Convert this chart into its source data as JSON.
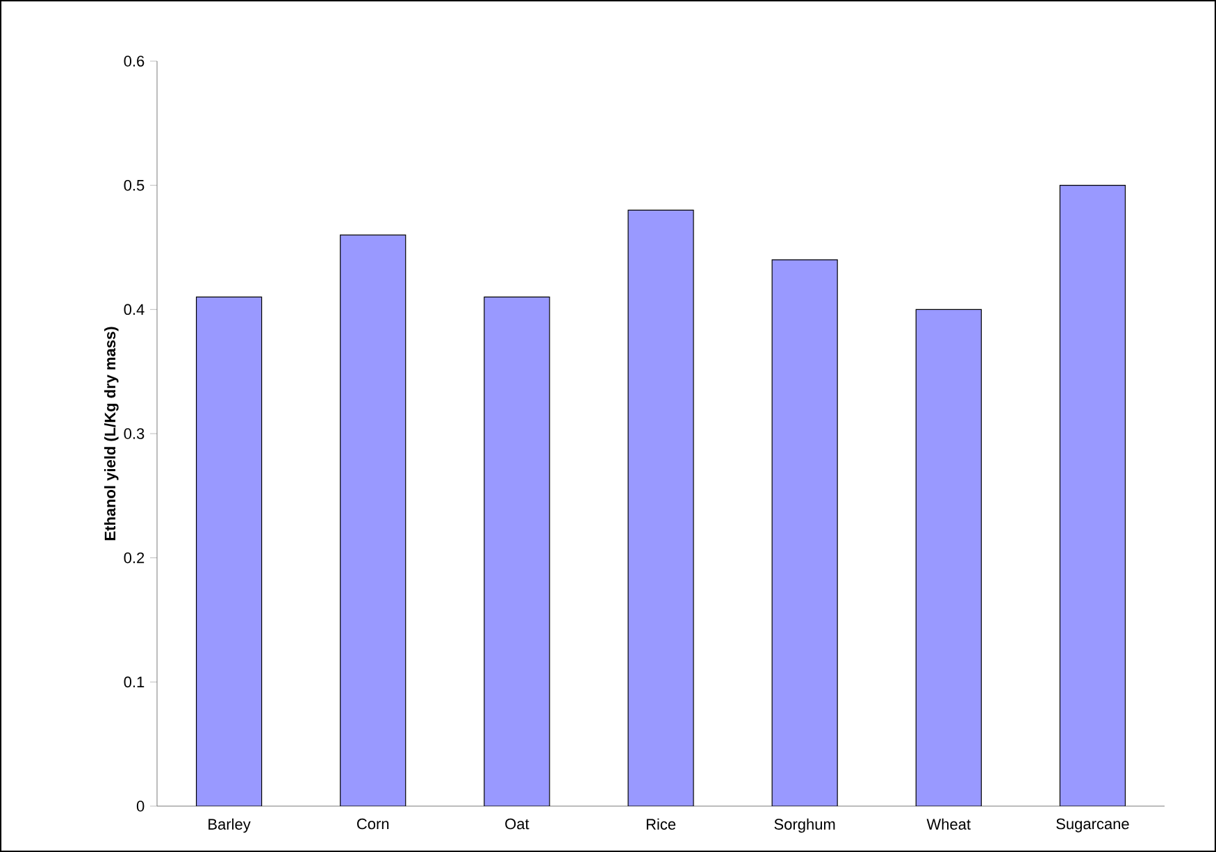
{
  "chart_data": {
    "type": "bar",
    "ylabel": "Ethanol yield (L/Kg dry mass)",
    "categories": [
      "Barley",
      "Corn",
      "Oat",
      "Rice",
      "Sorghum",
      "Wheat",
      "Sugarcane"
    ],
    "values": [
      0.41,
      0.46,
      0.41,
      0.48,
      0.44,
      0.4,
      0.5
    ],
    "color": "#9999ff",
    "ylim": [
      0,
      0.6
    ],
    "yticks": [
      0,
      0.1,
      0.2,
      0.3,
      0.4,
      0.5,
      0.6
    ],
    "grid": false
  }
}
